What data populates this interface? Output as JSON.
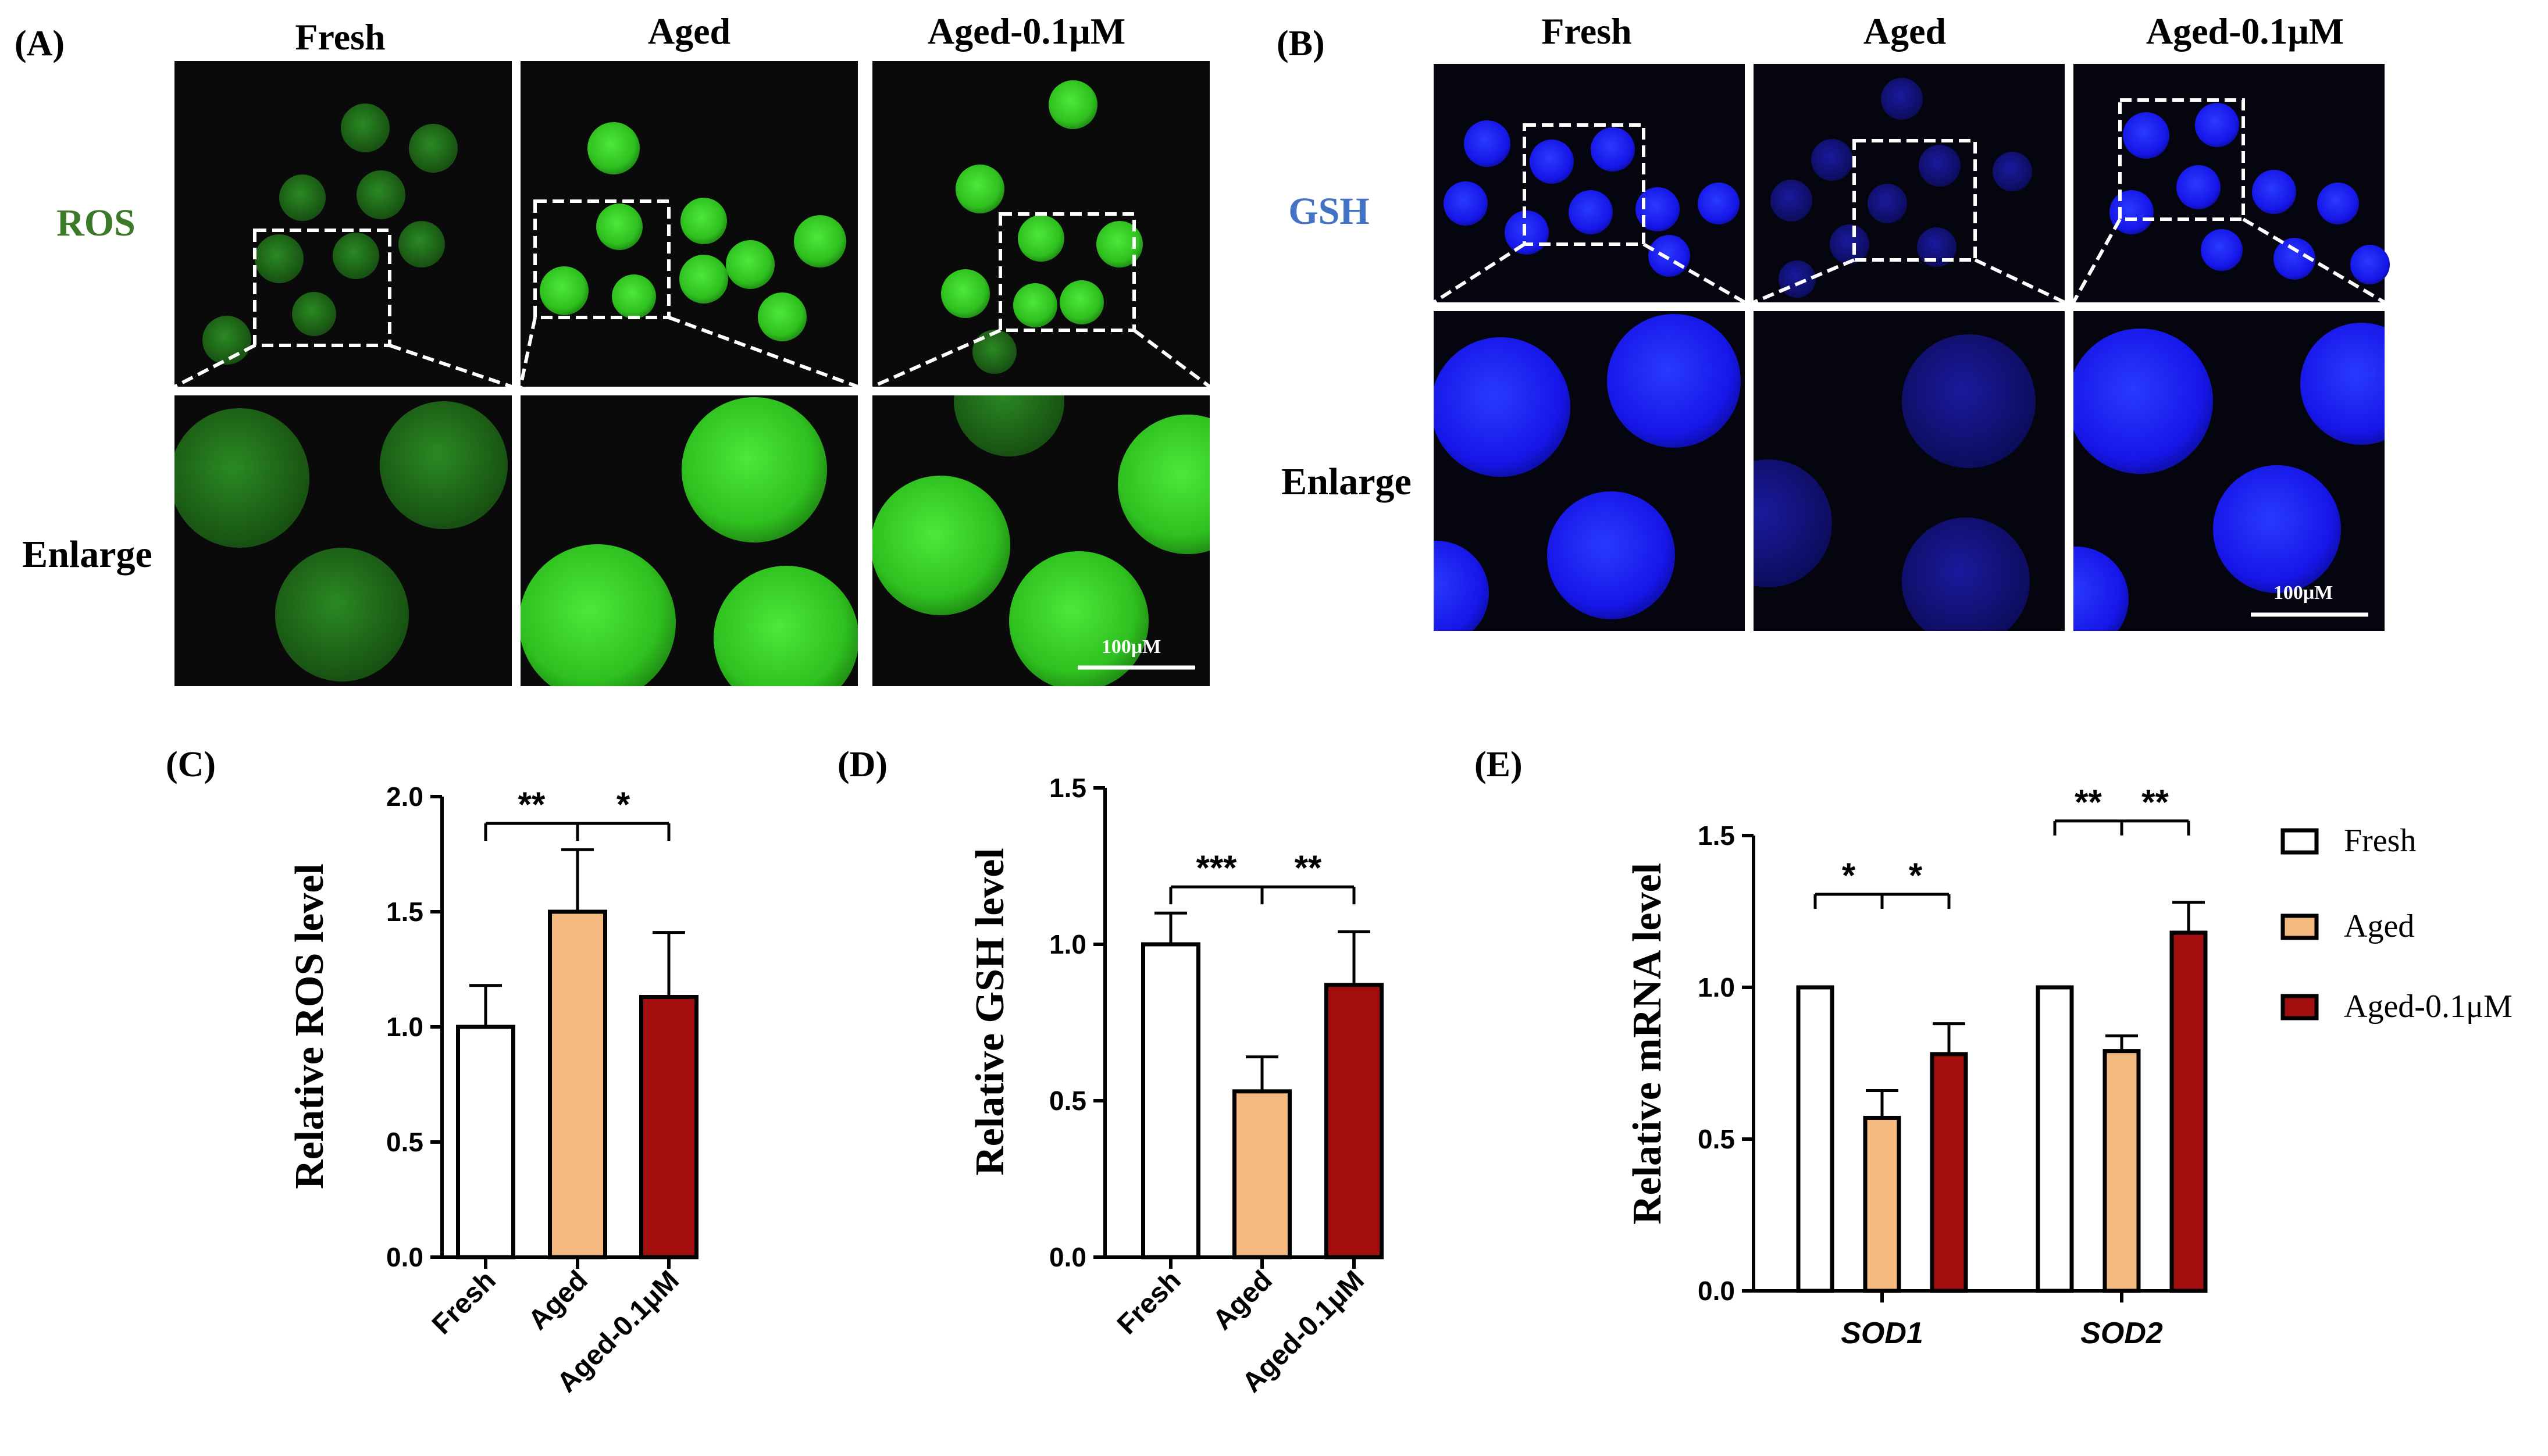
{
  "panels": {
    "A": {
      "label": "(A)",
      "columns": [
        "Fresh",
        "Aged",
        "Aged-0.1μM"
      ],
      "row_labels": [
        "ROS",
        "Enlarge"
      ],
      "scale_bar": "100μM",
      "colors": {
        "stain": "#33d11f",
        "background": "#0a0a0a",
        "label": "#3c7a2a"
      }
    },
    "B": {
      "label": "(B)",
      "columns": [
        "Fresh",
        "Aged",
        "Aged-0.1μM"
      ],
      "row_labels": [
        "GSH",
        "Enlarge"
      ],
      "scale_bar": "100μM",
      "colors": {
        "stain": "#1a1aff",
        "background": "#050510",
        "label": "#4472c4"
      }
    }
  },
  "legend": {
    "entries": [
      {
        "name": "Fresh",
        "color": "#ffffff"
      },
      {
        "name": "Aged",
        "color": "#f4b97f"
      },
      {
        "name": "Aged-0.1μM",
        "color": "#a30f0f"
      }
    ]
  },
  "chart_data": [
    {
      "panel_label": "(C)",
      "type": "bar",
      "categories": [
        "Fresh",
        "Aged",
        "Aged-0.1μM"
      ],
      "values": [
        1.0,
        1.5,
        1.13
      ],
      "errors": [
        0.18,
        0.27,
        0.28
      ],
      "colors": [
        "#ffffff",
        "#f4b97f",
        "#a30f0f"
      ],
      "ylabel": "Relative ROS level",
      "ylim": [
        0,
        2.0
      ],
      "yticks": [
        "0.0",
        "0.5",
        "1.0",
        "1.5",
        "2.0"
      ],
      "significance": [
        {
          "from": "Fresh",
          "to": "Aged",
          "label": "**"
        },
        {
          "from": "Aged",
          "to": "Aged-0.1μM",
          "label": "*"
        }
      ]
    },
    {
      "panel_label": "(D)",
      "type": "bar",
      "categories": [
        "Fresh",
        "Aged",
        "Aged-0.1μM"
      ],
      "values": [
        1.0,
        0.53,
        0.87
      ],
      "errors": [
        0.1,
        0.11,
        0.17
      ],
      "colors": [
        "#ffffff",
        "#f4b97f",
        "#a30f0f"
      ],
      "ylabel": "Relative GSH level",
      "ylim": [
        0,
        1.5
      ],
      "yticks": [
        "0.0",
        "0.5",
        "1.0",
        "1.5"
      ],
      "significance": [
        {
          "from": "Fresh",
          "to": "Aged",
          "label": "***"
        },
        {
          "from": "Aged",
          "to": "Aged-0.1μM",
          "label": "**"
        }
      ]
    },
    {
      "panel_label": "(E)",
      "type": "bar",
      "categories": [
        "SOD1",
        "SOD2"
      ],
      "series": [
        {
          "name": "Fresh",
          "values": [
            1.0,
            1.0
          ],
          "errors": [
            0,
            0
          ]
        },
        {
          "name": "Aged",
          "values": [
            0.57,
            0.79
          ],
          "errors": [
            0.09,
            0.05
          ]
        },
        {
          "name": "Aged-0.1μM",
          "values": [
            0.78,
            1.18
          ],
          "errors": [
            0.1,
            0.1
          ]
        }
      ],
      "colors": [
        "#ffffff",
        "#f4b97f",
        "#a30f0f"
      ],
      "ylabel": "Relative mRNA level",
      "ylim": [
        0,
        1.5
      ],
      "yticks": [
        "0.0",
        "0.5",
        "1.0",
        "1.5"
      ],
      "significance": [
        {
          "group": "SOD1",
          "labels": [
            "*",
            "*"
          ]
        },
        {
          "group": "SOD2",
          "labels": [
            "**",
            "**"
          ]
        }
      ]
    }
  ]
}
